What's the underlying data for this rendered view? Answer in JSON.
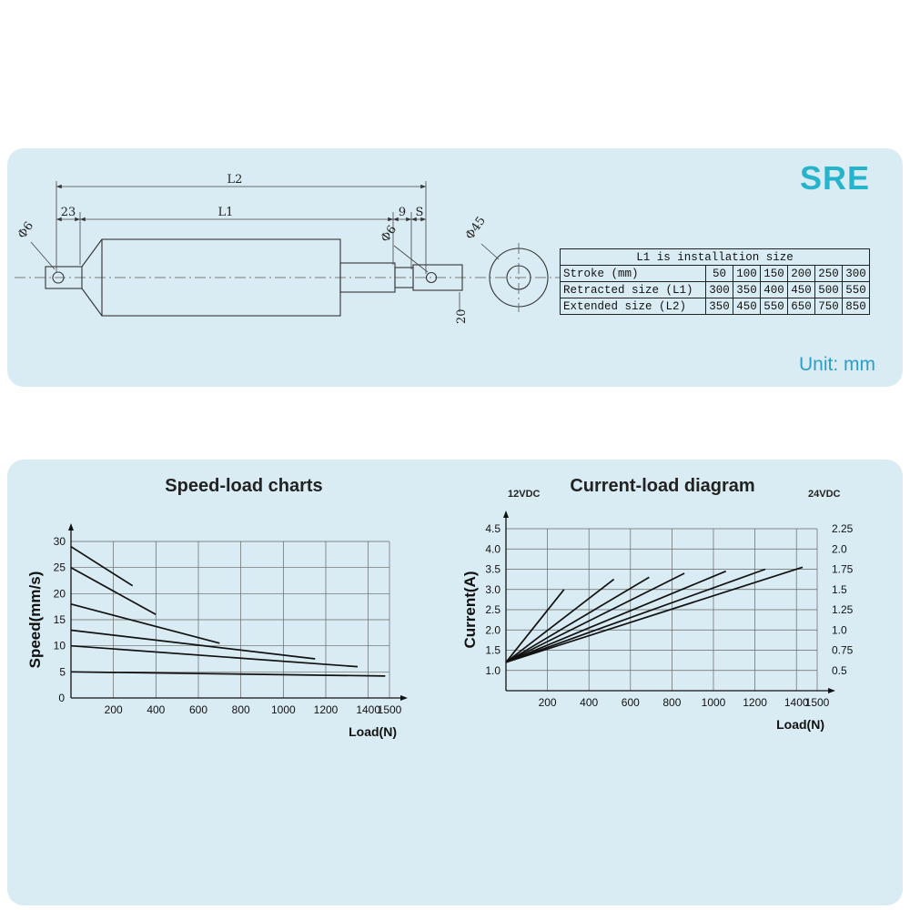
{
  "brand": "SRE",
  "unit_label": "Unit: mm",
  "colors": {
    "panel_bg": "#d9ecf3",
    "brand_teal": "#25b4cc",
    "unit_teal": "#2b9fc9",
    "line_color": "#111111"
  },
  "drawing": {
    "dims": {
      "l2": "L2",
      "l1": "L1",
      "left_offset": "23",
      "rod_step": "9",
      "stroke": "S",
      "dia_rear": "Φ6",
      "dia_front": "Φ6",
      "dia_body": "Φ45",
      "mount_width": "20"
    }
  },
  "table": {
    "title": "L1 is installation size",
    "rows": [
      {
        "label": "Stroke (mm)",
        "values": [
          "50",
          "100",
          "150",
          "200",
          "250",
          "300"
        ]
      },
      {
        "label": "Retracted size (L1)",
        "values": [
          "300",
          "350",
          "400",
          "450",
          "500",
          "550"
        ]
      },
      {
        "label": "Extended size (L2)",
        "values": [
          "350",
          "450",
          "550",
          "650",
          "750",
          "850"
        ]
      }
    ]
  },
  "chart_data": [
    {
      "type": "line",
      "title": "Speed-load charts",
      "xlabel": "Load(N)",
      "ylabel": "Speed(mm/s)",
      "xlim": [
        0,
        1500
      ],
      "ylim": [
        0,
        30
      ],
      "xticks": [
        200,
        400,
        600,
        800,
        1000,
        1200,
        1400,
        1500
      ],
      "yticks": [
        "5",
        "10",
        "15",
        "20",
        "25",
        "30"
      ],
      "origin_label": "0",
      "grid": true,
      "legend": "none",
      "series": [
        {
          "name": "speed-line-1",
          "x": [
            0,
            290
          ],
          "y": [
            29,
            21.5
          ]
        },
        {
          "name": "speed-line-2",
          "x": [
            0,
            400
          ],
          "y": [
            25,
            16
          ]
        },
        {
          "name": "speed-line-3",
          "x": [
            0,
            700
          ],
          "y": [
            18,
            10.5
          ]
        },
        {
          "name": "speed-line-4",
          "x": [
            0,
            1150
          ],
          "y": [
            13,
            7.5
          ]
        },
        {
          "name": "speed-line-5",
          "x": [
            0,
            1350
          ],
          "y": [
            10,
            6
          ]
        },
        {
          "name": "speed-line-6",
          "x": [
            0,
            1480
          ],
          "y": [
            5,
            4.2
          ]
        }
      ]
    },
    {
      "type": "line",
      "title": "Current-load diagram",
      "xlabel": "Load(N)",
      "ylabel": "Current(A)",
      "left_axis_label": "12VDC",
      "right_axis_label": "24VDC",
      "xlim": [
        0,
        1500
      ],
      "ylim": [
        0.5,
        4.5
      ],
      "xticks": [
        200,
        400,
        600,
        800,
        1000,
        1200,
        1400,
        1500
      ],
      "yticks": [
        "1.0",
        "1.5",
        "2.0",
        "2.5",
        "3.0",
        "3.5",
        "4.0",
        "4.5"
      ],
      "yticks_right": [
        "0.5",
        "0.75",
        "1.0",
        "1.25",
        "1.5",
        "1.75",
        "2.0",
        "2.25"
      ],
      "grid": true,
      "legend": "none",
      "series": [
        {
          "name": "current-line-1",
          "x": [
            0,
            280
          ],
          "y": [
            1.2,
            3.0
          ]
        },
        {
          "name": "current-line-2",
          "x": [
            0,
            520
          ],
          "y": [
            1.2,
            3.25
          ]
        },
        {
          "name": "current-line-3",
          "x": [
            0,
            690
          ],
          "y": [
            1.2,
            3.3
          ]
        },
        {
          "name": "current-line-4",
          "x": [
            0,
            860
          ],
          "y": [
            1.2,
            3.4
          ]
        },
        {
          "name": "current-line-5",
          "x": [
            0,
            1060
          ],
          "y": [
            1.2,
            3.45
          ]
        },
        {
          "name": "current-line-6",
          "x": [
            0,
            1250
          ],
          "y": [
            1.2,
            3.5
          ]
        },
        {
          "name": "current-line-7",
          "x": [
            0,
            1430
          ],
          "y": [
            1.2,
            3.55
          ]
        }
      ]
    }
  ]
}
